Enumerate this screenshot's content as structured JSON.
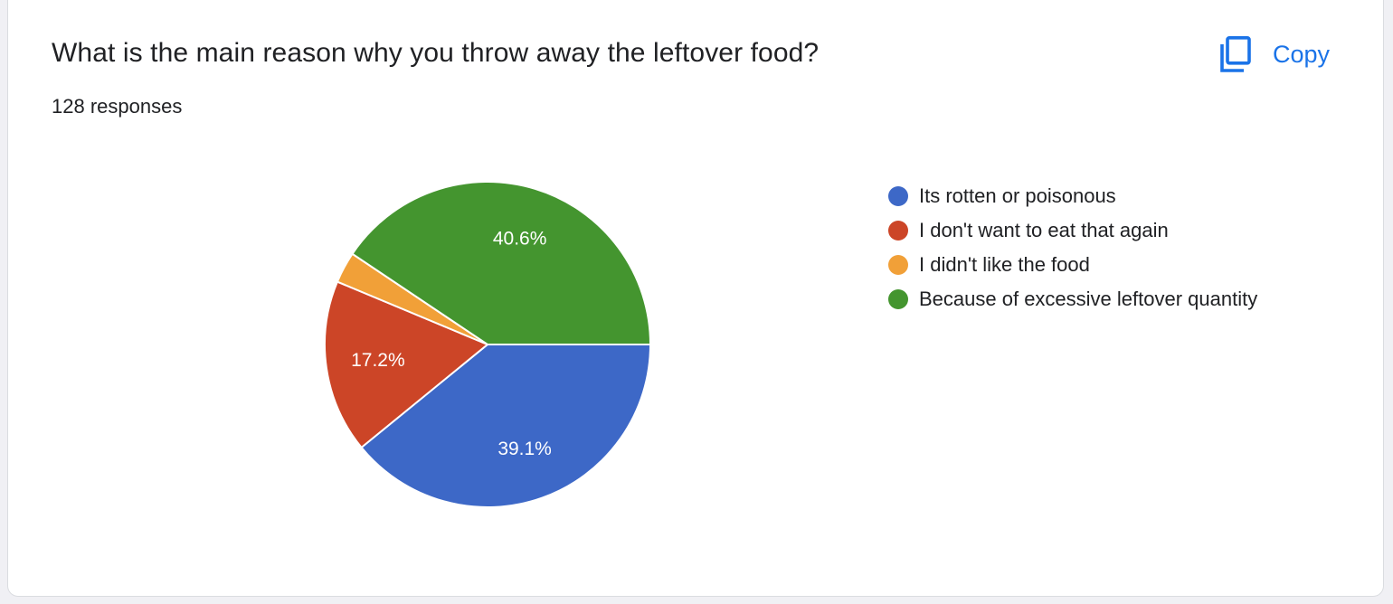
{
  "card": {
    "title": "What is the main reason why you throw away the leftover food?",
    "responses": "128 responses",
    "copy_label": "Copy",
    "copy_icon": "copy-icon",
    "accent": "#1a73e8"
  },
  "chart_data": {
    "type": "pie",
    "categories": [
      "Its rotten or poisonous",
      "I don't want to eat that again",
      "I didn't like the food",
      "Because of excessive leftover quantity"
    ],
    "values": [
      39.1,
      17.2,
      3.1,
      40.6
    ],
    "labels": [
      "39.1%",
      "17.2%",
      "",
      "40.6%"
    ],
    "colors": [
      "#3d68c7",
      "#cc4527",
      "#f1a038",
      "#44952f"
    ],
    "legend": "right"
  }
}
